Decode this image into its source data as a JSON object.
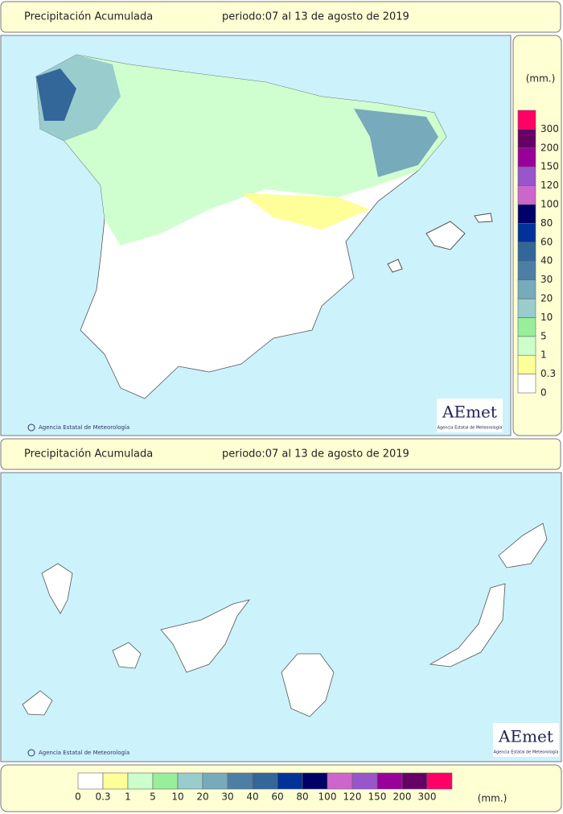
{
  "headers": [
    {
      "title": "Precipitación Acumulada",
      "period": "periodo:07 al 13 de agosto de 2019"
    },
    {
      "title": "Precipitación Acumulada",
      "period": "periodo:07 al 13 de agosto de 2019"
    }
  ],
  "credit": "Agencia Estatal de Meteorología",
  "logo": {
    "name": "AEmet",
    "subtitle": "Agencia Estatal de Meteorología"
  },
  "legend": {
    "unit": "(mm.)",
    "items": [
      {
        "label": "0",
        "color": "#ffffff"
      },
      {
        "label": "0.3",
        "color": "#ffff99"
      },
      {
        "label": "1",
        "color": "#ccffcc"
      },
      {
        "label": "5",
        "color": "#99ee99"
      },
      {
        "label": "10",
        "color": "#99cccc"
      },
      {
        "label": "20",
        "color": "#77aabb"
      },
      {
        "label": "30",
        "color": "#4d7fa6"
      },
      {
        "label": "40",
        "color": "#336699"
      },
      {
        "label": "60",
        "color": "#003399"
      },
      {
        "label": "80",
        "color": "#000066"
      },
      {
        "label": "100",
        "color": "#cc66cc"
      },
      {
        "label": "120",
        "color": "#9955cc"
      },
      {
        "label": "150",
        "color": "#990099"
      },
      {
        "label": "200",
        "color": "#660066"
      },
      {
        "label": "300",
        "color": "#ff0066"
      }
    ]
  }
}
